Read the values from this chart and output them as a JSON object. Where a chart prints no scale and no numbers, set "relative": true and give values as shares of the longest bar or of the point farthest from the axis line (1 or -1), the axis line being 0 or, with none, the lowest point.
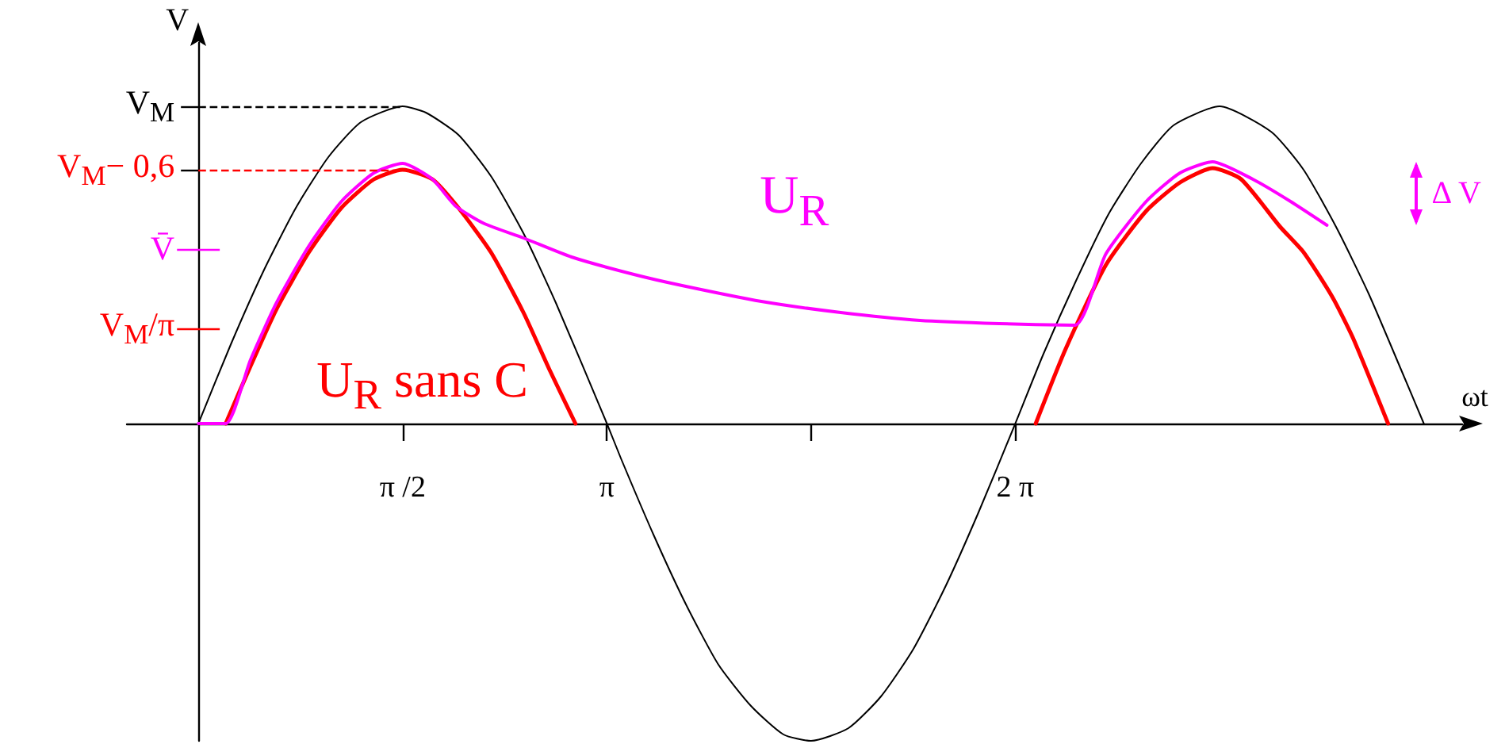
{
  "chart_data": {
    "type": "line",
    "relative": true,
    "xlabel": "ωt",
    "ylabel": "V",
    "xlim": [
      -0.55,
      9.72
    ],
    "xticks": [
      {
        "value": 1.571,
        "label": "π /2"
      },
      {
        "value": 3.142,
        "label": "π"
      },
      {
        "value": 4.712,
        "label": null
      },
      {
        "value": 6.283,
        "label": "2 π"
      }
    ],
    "ref_lines": [
      {
        "axis": "y",
        "value": 1,
        "label": "V$_{M}$",
        "color": "#000000",
        "line_style": "dashed"
      },
      {
        "axis": "y",
        "value": 0.8,
        "label": "V$_{M}$− 0,6",
        "color": "#ff0000",
        "line_style": "dashed"
      },
      {
        "axis": "y",
        "value": 0.55,
        "label": "V̄",
        "color": "#ff00ff",
        "line_style": "solid"
      },
      {
        "axis": "y",
        "value": 0.3,
        "label": "V$_{M}$/π",
        "color": "#ff0000",
        "line_style": "solid"
      }
    ],
    "annotations": [
      "Δ V"
    ],
    "series": [
      {
        "color": "#000000",
        "x": [
          0,
          0.25,
          0.5,
          0.75,
          1,
          1.25,
          1.571,
          1.75,
          2,
          2.25,
          2.5,
          2.75,
          3.142,
          3.25,
          3.5,
          3.75,
          4,
          4.25,
          4.5,
          4.712,
          5,
          5.25,
          5.5,
          5.75,
          6,
          6.283,
          6.5,
          6.75,
          7,
          7.25,
          7.5,
          7.854,
          8.25,
          8.5,
          8.75,
          9,
          9.25,
          9.425
        ],
        "values": [
          0,
          0.25,
          0.48,
          0.68,
          0.84,
          0.95,
          1,
          0.98,
          0.91,
          0.78,
          0.6,
          0.38,
          0,
          -0.11,
          -0.35,
          -0.57,
          -0.76,
          -0.89,
          -0.98,
          -1,
          -0.96,
          -0.86,
          -0.71,
          -0.51,
          -0.28,
          0,
          0.22,
          0.45,
          0.66,
          0.82,
          0.94,
          1,
          0.92,
          0.8,
          0.62,
          0.41,
          0.17,
          0
        ]
      },
      {
        "name": "U$_{R}$ sans C",
        "color": "#ff0000",
        "x": [
          0.21,
          0.4,
          0.6,
          0.85,
          1.1,
          1.35,
          1.571,
          1.8,
          2,
          2.25,
          2.5,
          2.7,
          2.9,
          4.5,
          6.44,
          6.67,
          6.98,
          7.29,
          7.55,
          7.8,
          8.02,
          8.32,
          8.5,
          8.72,
          8.88,
          9.15
        ],
        "values": [
          0,
          0.18,
          0.36,
          0.54,
          0.68,
          0.77,
          0.8,
          0.77,
          0.68,
          0.54,
          0.35,
          0.17,
          0,
          null,
          0,
          0.235,
          0.5,
          0.67,
          0.76,
          0.805,
          0.77,
          0.62,
          0.54,
          0.4,
          0.27,
          0
        ]
      },
      {
        "name": "U$_{R}$",
        "color": "#ff00ff",
        "x": [
          0,
          0.21,
          0.4,
          0.6,
          0.85,
          1.1,
          1.35,
          1.571,
          1.8,
          1.98,
          2.2,
          2.5,
          2.87,
          3.35,
          3.72,
          4.33,
          4.94,
          5.55,
          6.16,
          6.74,
          6.98,
          7.29,
          7.55,
          7.8,
          8.11,
          8.4,
          8.68
        ],
        "values": [
          0,
          0,
          0.2,
          0.38,
          0.56,
          0.7,
          0.79,
          0.82,
          0.77,
          0.685,
          0.63,
          0.585,
          0.525,
          0.47,
          0.435,
          0.385,
          0.35,
          0.325,
          0.315,
          0.31,
          0.535,
          0.7,
          0.79,
          0.825,
          0.77,
          0.7,
          0.625
        ]
      }
    ]
  }
}
